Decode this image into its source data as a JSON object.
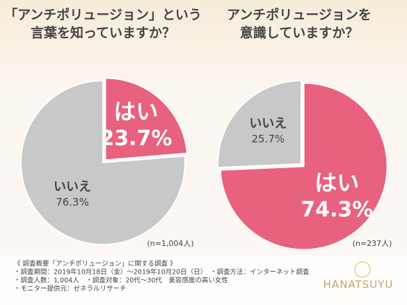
{
  "chart_data": [
    {
      "type": "pie",
      "title": [
        "「アンチポリュージョン」という",
        "言葉を知っていますか？"
      ],
      "categories": [
        "はい",
        "いいえ"
      ],
      "values": [
        23.7,
        76.3
      ],
      "value_labels": [
        "23.7%",
        "76.3%"
      ],
      "colors": [
        "#e8617f",
        "#c8c8c8"
      ],
      "note": "(n=1,004人)"
    },
    {
      "type": "pie",
      "title": [
        "アンチポリュージョンを",
        "意識していますか？"
      ],
      "categories": [
        "はい",
        "いいえ"
      ],
      "values": [
        74.3,
        25.7
      ],
      "value_labels": [
        "74.3%",
        "25.7%"
      ],
      "colors": [
        "#e8617f",
        "#c8c8c8"
      ],
      "note": "(n=237人)"
    }
  ],
  "footer": [
    "《 調査概要「アンチポリュージョン」に関する調査 》",
    "・調査期間：2019年10月18日（金）〜2019年10月20日（日）　・調査方法：インターネット調査",
    "・調査人数：1,004人　・調査対象：20代〜30代　美容感度の高い女性",
    "・モニター提供元：ゼネラルリサーチ"
  ],
  "brand": "HANATSUYU"
}
